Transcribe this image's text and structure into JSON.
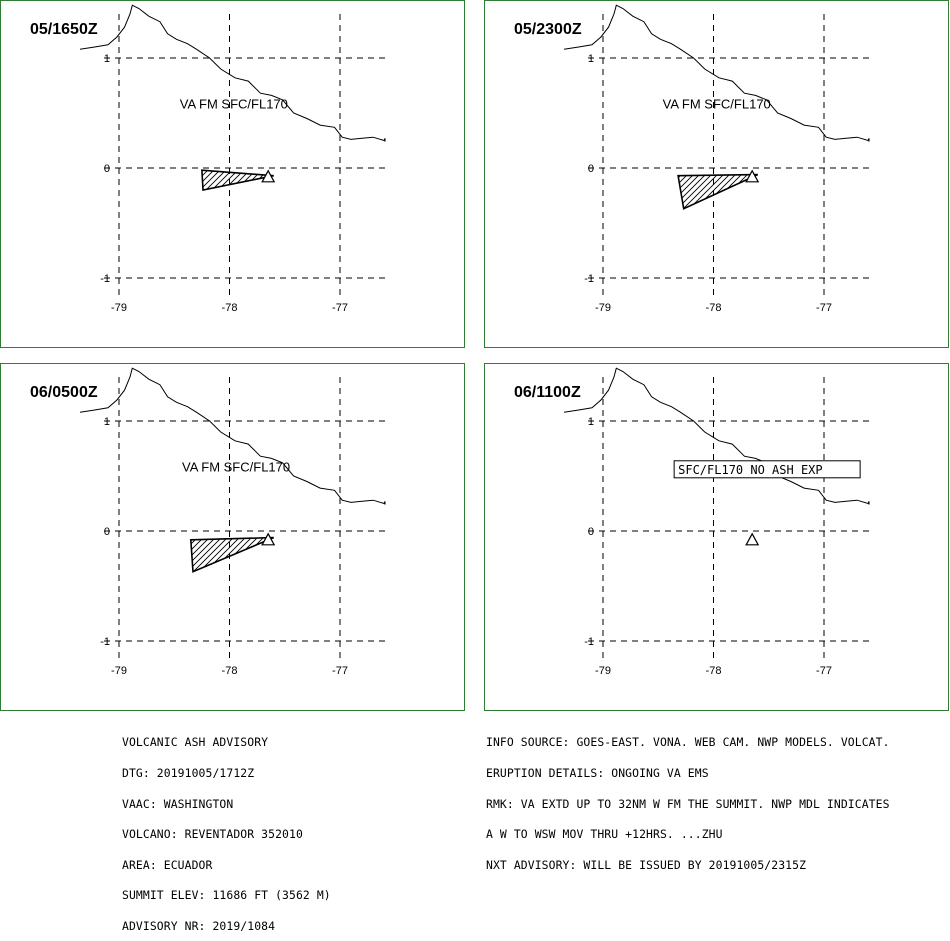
{
  "colors": {
    "frame": "#2e7d32",
    "ink": "#000000",
    "background": "#ffffff"
  },
  "map": {
    "lon_ticks": [
      -79,
      -78,
      -77
    ],
    "lat_ticks": [
      1,
      0,
      -1
    ],
    "lon_range": [
      -79.1,
      -76.35
    ],
    "lat_range": [
      -1.05,
      1.5
    ],
    "coastline": [
      [
        -79.4,
        1.08
      ],
      [
        -79.22,
        1.1
      ],
      [
        -79.1,
        1.12
      ],
      [
        -79.02,
        1.19
      ],
      [
        -78.95,
        1.28
      ],
      [
        -78.9,
        1.4
      ],
      [
        -78.88,
        1.48
      ],
      [
        -78.82,
        1.45
      ],
      [
        -78.73,
        1.38
      ],
      [
        -78.63,
        1.33
      ],
      [
        -78.56,
        1.22
      ],
      [
        -78.48,
        1.17
      ],
      [
        -78.38,
        1.13
      ],
      [
        -78.3,
        1.08
      ],
      [
        -78.18,
        1.0
      ],
      [
        -78.08,
        0.9
      ],
      [
        -77.95,
        0.82
      ],
      [
        -77.83,
        0.79
      ],
      [
        -77.72,
        0.68
      ],
      [
        -77.62,
        0.66
      ],
      [
        -77.52,
        0.62
      ],
      [
        -77.42,
        0.5
      ],
      [
        -77.3,
        0.45
      ],
      [
        -77.18,
        0.39
      ],
      [
        -77.05,
        0.37
      ],
      [
        -76.98,
        0.28
      ],
      [
        -76.9,
        0.26
      ],
      [
        -76.8,
        0.27
      ],
      [
        -76.7,
        0.28
      ],
      [
        -76.6,
        0.25
      ],
      [
        -76.48,
        0.27
      ],
      [
        -76.4,
        0.24
      ]
    ],
    "volcano": {
      "lon": -77.65,
      "lat": -0.08
    }
  },
  "panels": [
    {
      "time_label": "05/1650Z",
      "ash_label": "VA FM SFC/FL170",
      "ash_label_pos": {
        "lon": -78.45,
        "lat": 0.54
      },
      "boxed": false,
      "polygon": [
        [
          -78.25,
          -0.02
        ],
        [
          -77.6,
          -0.07
        ],
        [
          -78.24,
          -0.2
        ]
      ]
    },
    {
      "time_label": "05/2300Z",
      "ash_label": "VA FM SFC/FL170",
      "ash_label_pos": {
        "lon": -78.46,
        "lat": 0.54
      },
      "boxed": false,
      "polygon": [
        [
          -78.32,
          -0.07
        ],
        [
          -77.6,
          -0.06
        ],
        [
          -78.27,
          -0.37
        ]
      ]
    },
    {
      "time_label": "06/0500Z",
      "ash_label": "VA FM SFC/FL170",
      "ash_label_pos": {
        "lon": -78.43,
        "lat": 0.54
      },
      "boxed": false,
      "polygon": [
        [
          -78.35,
          -0.08
        ],
        [
          -77.6,
          -0.06
        ],
        [
          -78.33,
          -0.37
        ]
      ]
    },
    {
      "time_label": "06/1100Z",
      "ash_label": "SFC/FL170 NO ASH EXP",
      "ash_label_pos": {
        "lon": -78.32,
        "lat": 0.52
      },
      "boxed": true,
      "polygon": []
    }
  ],
  "advisory": {
    "left_lines": [
      "VOLCANIC ASH ADVISORY",
      "DTG: 20191005/1712Z",
      "VAAC: WASHINGTON",
      "VOLCANO: REVENTADOR 352010",
      "AREA: ECUADOR",
      "SUMMIT ELEV: 11686 FT (3562 M)",
      "ADVISORY NR: 2019/1084"
    ],
    "right_lines": [
      "INFO SOURCE: GOES-EAST. VONA. WEB CAM. NWP MODELS. VOLCAT.",
      "ERUPTION DETAILS: ONGOING VA EMS",
      "RMK: VA EXTD UP TO 32NM W FM THE SUMMIT. NWP MDL INDICATES",
      "A W TO WSW MOV THRU +12HRS. ...ZHU",
      "NXT ADVISORY: WILL BE ISSUED BY 20191005/2315Z"
    ]
  }
}
